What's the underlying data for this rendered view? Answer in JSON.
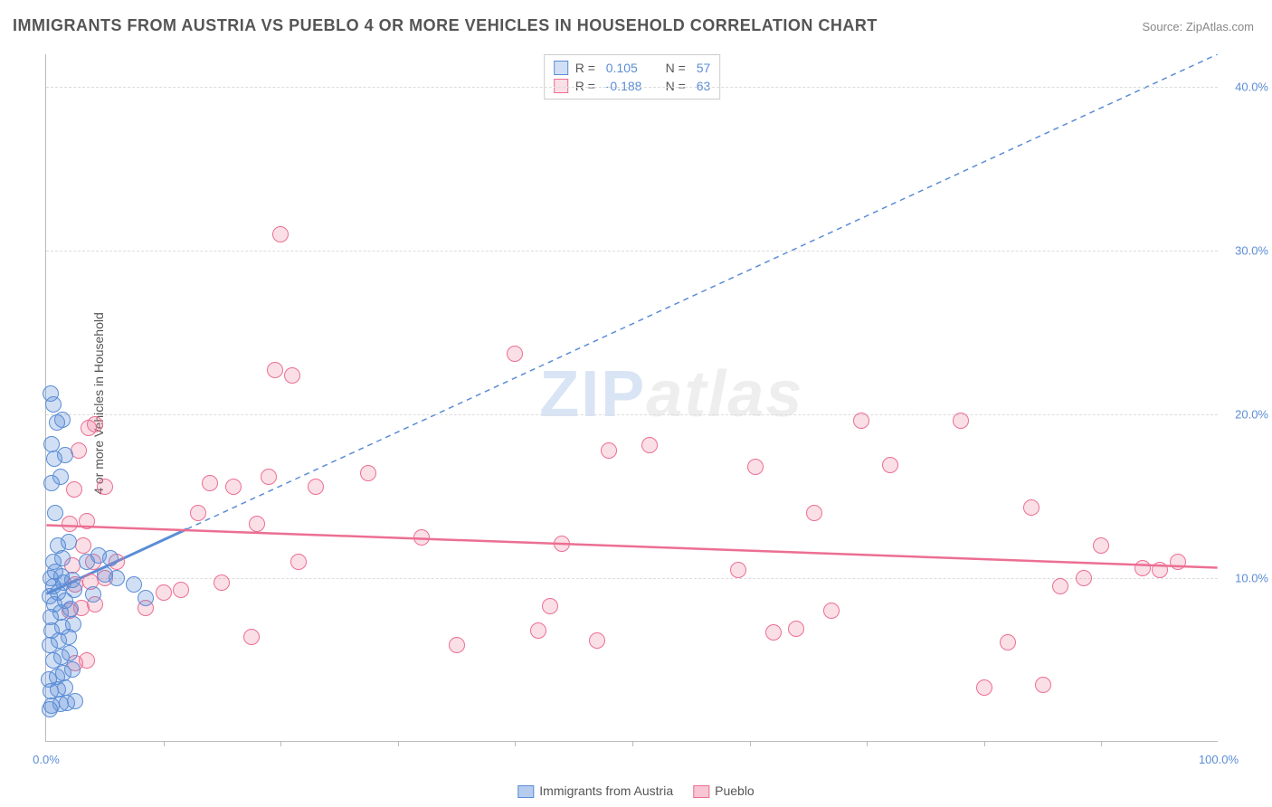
{
  "title": "IMMIGRANTS FROM AUSTRIA VS PUEBLO 4 OR MORE VEHICLES IN HOUSEHOLD CORRELATION CHART",
  "source": "Source: ZipAtlas.com",
  "ylabel": "4 or more Vehicles in Household",
  "watermark": {
    "zip": "ZIP",
    "atlas": "atlas"
  },
  "chart": {
    "type": "scatter",
    "background_color": "#ffffff",
    "grid_color": "#dddddd",
    "axis_color": "#bbbbbb",
    "tick_color": "#5b8dd6",
    "title_color": "#555555",
    "title_fontsize": 18,
    "label_fontsize": 14,
    "tick_fontsize": 13,
    "xlim": [
      0,
      100
    ],
    "ylim": [
      0,
      42
    ],
    "yticks": [
      {
        "value": 10,
        "label": "10.0%"
      },
      {
        "value": 20,
        "label": "20.0%"
      },
      {
        "value": 30,
        "label": "30.0%"
      },
      {
        "value": 40,
        "label": "40.0%"
      }
    ],
    "xticks_minor": [
      10,
      20,
      30,
      40,
      50,
      60,
      70,
      80,
      90
    ],
    "xticks_labeled": [
      {
        "value": 0,
        "label": "0.0%"
      },
      {
        "value": 100,
        "label": "100.0%"
      }
    ],
    "marker_radius": 9,
    "marker_border_width": 1.5,
    "series": [
      {
        "name": "Immigrants from Austria",
        "fill_color": "rgba(91,141,214,0.28)",
        "border_color": "#5b8dd6",
        "r": "0.105",
        "n": "57",
        "regression": {
          "x1": 0,
          "y1": 9.0,
          "x2": 100,
          "y2": 42.0,
          "dash": "6,5",
          "width": 1.5,
          "color": "#5b8dd6",
          "solid_until_x": 12
        },
        "points": [
          [
            0.3,
            2.0
          ],
          [
            0.5,
            2.2
          ],
          [
            1.2,
            2.3
          ],
          [
            1.8,
            2.4
          ],
          [
            2.5,
            2.5
          ],
          [
            0.4,
            3.1
          ],
          [
            1.0,
            3.2
          ],
          [
            1.6,
            3.3
          ],
          [
            0.2,
            3.8
          ],
          [
            0.9,
            4.0
          ],
          [
            1.5,
            4.2
          ],
          [
            2.2,
            4.4
          ],
          [
            0.6,
            5.0
          ],
          [
            1.3,
            5.2
          ],
          [
            2.0,
            5.4
          ],
          [
            0.3,
            5.9
          ],
          [
            1.1,
            6.2
          ],
          [
            1.9,
            6.4
          ],
          [
            0.5,
            6.8
          ],
          [
            1.4,
            7.0
          ],
          [
            2.3,
            7.2
          ],
          [
            0.4,
            7.6
          ],
          [
            1.2,
            7.9
          ],
          [
            2.1,
            8.1
          ],
          [
            0.7,
            8.4
          ],
          [
            1.6,
            8.6
          ],
          [
            0.3,
            8.9
          ],
          [
            1.0,
            9.1
          ],
          [
            2.4,
            9.3
          ],
          [
            0.6,
            9.5
          ],
          [
            1.5,
            9.7
          ],
          [
            2.2,
            9.9
          ],
          [
            0.4,
            10.0
          ],
          [
            1.3,
            10.1
          ],
          [
            0.8,
            10.4
          ],
          [
            4.0,
            9.0
          ],
          [
            5.0,
            10.2
          ],
          [
            6.0,
            10.0
          ],
          [
            7.5,
            9.6
          ],
          [
            8.5,
            8.8
          ],
          [
            3.5,
            11.0
          ],
          [
            4.5,
            11.4
          ],
          [
            5.5,
            11.2
          ],
          [
            0.6,
            11.0
          ],
          [
            1.4,
            11.2
          ],
          [
            1.0,
            12.0
          ],
          [
            1.9,
            12.2
          ],
          [
            0.8,
            14.0
          ],
          [
            0.5,
            15.8
          ],
          [
            1.2,
            16.2
          ],
          [
            0.7,
            17.3
          ],
          [
            1.6,
            17.5
          ],
          [
            0.5,
            18.2
          ],
          [
            0.9,
            19.5
          ],
          [
            1.4,
            19.7
          ],
          [
            0.6,
            20.6
          ],
          [
            0.4,
            21.3
          ]
        ]
      },
      {
        "name": "Pueblo",
        "fill_color": "rgba(236,111,146,0.22)",
        "border_color": "#ec6f92",
        "r": "-0.188",
        "n": "63",
        "regression": {
          "x1": 0,
          "y1": 13.2,
          "x2": 100,
          "y2": 10.6,
          "dash": "none",
          "width": 2.5,
          "color": "#ec6f92"
        },
        "points": [
          [
            2.5,
            4.8
          ],
          [
            3.5,
            5.0
          ],
          [
            2.0,
            8.0
          ],
          [
            3.0,
            8.2
          ],
          [
            4.2,
            8.4
          ],
          [
            2.5,
            9.6
          ],
          [
            3.8,
            9.8
          ],
          [
            5.0,
            10.0
          ],
          [
            2.2,
            10.8
          ],
          [
            4.0,
            11.0
          ],
          [
            6.0,
            11.0
          ],
          [
            3.2,
            12.0
          ],
          [
            2.0,
            13.3
          ],
          [
            3.5,
            13.5
          ],
          [
            2.4,
            15.4
          ],
          [
            5.0,
            15.6
          ],
          [
            2.8,
            17.8
          ],
          [
            3.6,
            19.2
          ],
          [
            4.2,
            19.4
          ],
          [
            8.5,
            8.2
          ],
          [
            10.0,
            9.1
          ],
          [
            11.5,
            9.3
          ],
          [
            13.0,
            14.0
          ],
          [
            14.0,
            15.8
          ],
          [
            15.0,
            9.7
          ],
          [
            16.0,
            15.6
          ],
          [
            17.5,
            6.4
          ],
          [
            18.0,
            13.3
          ],
          [
            19.0,
            16.2
          ],
          [
            19.5,
            22.7
          ],
          [
            20.0,
            31.0
          ],
          [
            21.0,
            22.4
          ],
          [
            21.5,
            11.0
          ],
          [
            23.0,
            15.6
          ],
          [
            27.5,
            16.4
          ],
          [
            32.0,
            12.5
          ],
          [
            35.0,
            5.9
          ],
          [
            40.0,
            23.7
          ],
          [
            42.0,
            6.8
          ],
          [
            43.0,
            8.3
          ],
          [
            44.0,
            12.1
          ],
          [
            47.0,
            6.2
          ],
          [
            48.0,
            17.8
          ],
          [
            51.5,
            18.1
          ],
          [
            59.0,
            10.5
          ],
          [
            60.5,
            16.8
          ],
          [
            62.0,
            6.7
          ],
          [
            64.0,
            6.9
          ],
          [
            65.5,
            14.0
          ],
          [
            67.0,
            8.0
          ],
          [
            69.5,
            19.6
          ],
          [
            72.0,
            16.9
          ],
          [
            78.0,
            19.6
          ],
          [
            80.0,
            3.3
          ],
          [
            82.0,
            6.1
          ],
          [
            84.0,
            14.3
          ],
          [
            85.0,
            3.5
          ],
          [
            86.5,
            9.5
          ],
          [
            88.5,
            10.0
          ],
          [
            90.0,
            12.0
          ],
          [
            93.5,
            10.6
          ],
          [
            95.0,
            10.5
          ],
          [
            96.5,
            11.0
          ]
        ]
      }
    ]
  },
  "legend_bottom": [
    {
      "label": "Immigrants from Austria",
      "fill": "rgba(91,141,214,0.45)",
      "border": "#5b8dd6"
    },
    {
      "label": "Pueblo",
      "fill": "rgba(236,111,146,0.40)",
      "border": "#ec6f92"
    }
  ]
}
